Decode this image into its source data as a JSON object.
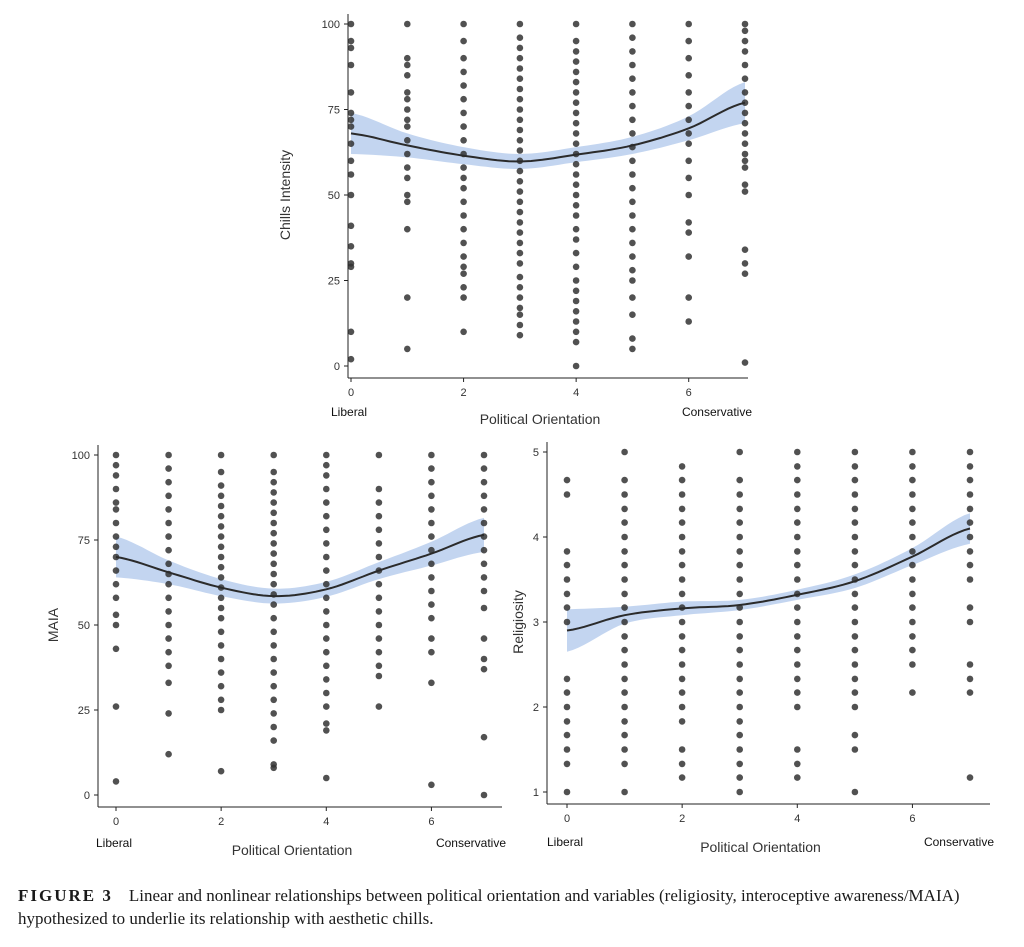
{
  "figure": {
    "label": "FIGURE 3",
    "caption": "Linear and nonlinear relationships between political orientation and variables (religiosity, interoceptive awareness/MAIA) hypothesized to underlie its relationship with aesthetic chills."
  },
  "colors": {
    "point": "#333333",
    "line": "#2b2b2b",
    "band": "#a9c3ea"
  },
  "chart_data": [
    {
      "id": "chills",
      "type": "scatter",
      "xlabel": "Political Orientation",
      "ylabel": "Chills Intensity",
      "xlim": [
        0,
        7
      ],
      "ylim": [
        0,
        100
      ],
      "xticks": [
        "0",
        "2",
        "4",
        "6"
      ],
      "yticks": [
        "0",
        "25",
        "50",
        "75",
        "100"
      ],
      "x_end_labels": [
        "Liberal",
        "Conservative"
      ],
      "fit_line": {
        "x": [
          0,
          1,
          2,
          3,
          4,
          5,
          6,
          7
        ],
        "y": [
          68,
          64.5,
          61.5,
          59.8,
          61.8,
          64.5,
          69.5,
          77
        ],
        "band": [
          6,
          3.5,
          2.5,
          2.2,
          2.2,
          2.5,
          3.5,
          6
        ]
      },
      "points": [
        {
          "x": 0,
          "y": [
            2,
            10,
            29,
            30,
            35,
            41,
            50,
            56,
            60,
            65,
            70,
            72,
            74,
            80,
            88,
            93,
            95,
            100
          ]
        },
        {
          "x": 1,
          "y": [
            5,
            20,
            40,
            48,
            50,
            55,
            58,
            62,
            66,
            70,
            72,
            75,
            78,
            80,
            85,
            88,
            90,
            100
          ]
        },
        {
          "x": 2,
          "y": [
            10,
            20,
            23,
            27,
            29,
            32,
            36,
            40,
            44,
            48,
            52,
            55,
            58,
            62,
            66,
            70,
            74,
            78,
            82,
            86,
            90,
            95,
            100
          ]
        },
        {
          "x": 3,
          "y": [
            9,
            12,
            15,
            17,
            20,
            23,
            26,
            30,
            33,
            36,
            39,
            42,
            45,
            48,
            51,
            54,
            57,
            60,
            63,
            66,
            69,
            72,
            75,
            78,
            81,
            84,
            87,
            90,
            93,
            96,
            100
          ]
        },
        {
          "x": 4,
          "y": [
            0,
            7,
            10,
            13,
            16,
            19,
            22,
            25,
            29,
            33,
            37,
            40,
            44,
            47,
            50,
            53,
            56,
            59,
            62,
            65,
            68,
            71,
            74,
            77,
            80,
            83,
            86,
            89,
            92,
            95,
            100
          ]
        },
        {
          "x": 5,
          "y": [
            5,
            8,
            15,
            20,
            25,
            28,
            32,
            36,
            40,
            44,
            48,
            52,
            56,
            60,
            64,
            68,
            72,
            76,
            80,
            84,
            88,
            92,
            96,
            100
          ]
        },
        {
          "x": 6,
          "y": [
            13,
            20,
            32,
            39,
            42,
            50,
            55,
            60,
            65,
            68,
            72,
            76,
            80,
            85,
            90,
            95,
            100
          ]
        },
        {
          "x": 7,
          "y": [
            1,
            27,
            30,
            34,
            51,
            53,
            58,
            60,
            62,
            65,
            68,
            71,
            74,
            77,
            80,
            84,
            88,
            92,
            95,
            98,
            100
          ]
        }
      ]
    },
    {
      "id": "maia",
      "type": "scatter",
      "xlabel": "Political Orientation",
      "ylabel": "MAIA",
      "xlim": [
        0,
        7
      ],
      "ylim": [
        0,
        100
      ],
      "xticks": [
        "0",
        "2",
        "4",
        "6"
      ],
      "yticks": [
        "0",
        "25",
        "50",
        "75",
        "100"
      ],
      "x_end_labels": [
        "Liberal",
        "Conservative"
      ],
      "fit_line": {
        "x": [
          0,
          1,
          2,
          3,
          4,
          5,
          6,
          7
        ],
        "y": [
          70,
          65.5,
          61,
          58.5,
          60.5,
          66,
          71,
          76.5
        ],
        "band": [
          6,
          3.5,
          2.5,
          2.2,
          2.2,
          2.5,
          3.5,
          5
        ]
      },
      "points": [
        {
          "x": 0,
          "y": [
            4,
            26,
            43,
            50,
            53,
            58,
            62,
            66,
            70,
            73,
            76,
            80,
            84,
            86,
            90,
            94,
            97,
            100
          ]
        },
        {
          "x": 1,
          "y": [
            12,
            24,
            33,
            38,
            42,
            46,
            50,
            54,
            58,
            62,
            65,
            68,
            72,
            76,
            80,
            84,
            88,
            92,
            96,
            100
          ]
        },
        {
          "x": 2,
          "y": [
            7,
            25,
            28,
            32,
            36,
            40,
            44,
            48,
            52,
            55,
            58,
            61,
            64,
            67,
            70,
            73,
            76,
            79,
            82,
            85,
            88,
            91,
            95,
            100
          ]
        },
        {
          "x": 3,
          "y": [
            8,
            9,
            16,
            20,
            24,
            28,
            32,
            36,
            40,
            44,
            48,
            52,
            56,
            59,
            62,
            65,
            68,
            71,
            74,
            77,
            80,
            83,
            86,
            89,
            92,
            95,
            100
          ]
        },
        {
          "x": 4,
          "y": [
            5,
            19,
            21,
            26,
            30,
            34,
            38,
            42,
            46,
            50,
            54,
            58,
            62,
            66,
            70,
            74,
            78,
            82,
            86,
            90,
            94,
            97,
            100
          ]
        },
        {
          "x": 5,
          "y": [
            26,
            35,
            38,
            42,
            46,
            50,
            54,
            58,
            62,
            66,
            70,
            74,
            78,
            82,
            86,
            90,
            100
          ]
        },
        {
          "x": 6,
          "y": [
            3,
            33,
            42,
            46,
            52,
            56,
            60,
            64,
            68,
            72,
            76,
            80,
            84,
            88,
            92,
            96,
            100
          ]
        },
        {
          "x": 7,
          "y": [
            0,
            17,
            37,
            40,
            46,
            55,
            60,
            64,
            68,
            72,
            76,
            80,
            84,
            88,
            92,
            96,
            100
          ]
        }
      ]
    },
    {
      "id": "religiosity",
      "type": "scatter",
      "xlabel": "Political Orientation",
      "ylabel": "Religiosity",
      "xlim": [
        0,
        7
      ],
      "ylim": [
        1,
        5
      ],
      "xticks": [
        "0",
        "2",
        "4",
        "6"
      ],
      "yticks": [
        "1",
        "2",
        "3",
        "4",
        "5"
      ],
      "x_end_labels": [
        "Liberal",
        "Conservative"
      ],
      "fit_line": {
        "x": [
          0,
          1,
          2,
          3,
          4,
          5,
          6,
          7
        ],
        "y": [
          2.9,
          3.08,
          3.16,
          3.2,
          3.32,
          3.48,
          3.77,
          4.1
        ],
        "band": [
          0.25,
          0.1,
          0.08,
          0.06,
          0.06,
          0.08,
          0.1,
          0.18
        ]
      },
      "points": [
        {
          "x": 0,
          "y": [
            1,
            1.33,
            1.5,
            1.67,
            1.83,
            2,
            2.17,
            2.33,
            3,
            3.17,
            3.33,
            3.5,
            3.67,
            3.83,
            4.5,
            4.67
          ]
        },
        {
          "x": 1,
          "y": [
            1,
            1.33,
            1.5,
            1.67,
            1.83,
            2,
            2.17,
            2.33,
            2.5,
            2.67,
            2.83,
            3,
            3.17,
            3.33,
            3.5,
            3.67,
            3.83,
            4,
            4.17,
            4.33,
            4.5,
            4.67,
            5
          ]
        },
        {
          "x": 2,
          "y": [
            1.17,
            1.33,
            1.5,
            1.83,
            2,
            2.17,
            2.33,
            2.5,
            2.67,
            2.83,
            3,
            3.17,
            3.33,
            3.5,
            3.67,
            3.83,
            4,
            4.17,
            4.33,
            4.5,
            4.67,
            4.83
          ]
        },
        {
          "x": 3,
          "y": [
            1,
            1.17,
            1.33,
            1.5,
            1.67,
            1.83,
            2,
            2.17,
            2.33,
            2.5,
            2.67,
            2.83,
            3,
            3.17,
            3.33,
            3.5,
            3.67,
            3.83,
            4,
            4.17,
            4.33,
            4.5,
            4.67,
            5
          ]
        },
        {
          "x": 4,
          "y": [
            1.17,
            1.33,
            1.5,
            2,
            2.17,
            2.33,
            2.5,
            2.67,
            2.83,
            3,
            3.17,
            3.33,
            3.5,
            3.67,
            3.83,
            4,
            4.17,
            4.33,
            4.5,
            4.67,
            4.83,
            5
          ]
        },
        {
          "x": 5,
          "y": [
            1,
            1.5,
            1.67,
            2,
            2.17,
            2.33,
            2.5,
            2.67,
            2.83,
            3,
            3.17,
            3.33,
            3.5,
            3.67,
            3.83,
            4,
            4.17,
            4.33,
            4.5,
            4.67,
            4.83,
            5
          ]
        },
        {
          "x": 6,
          "y": [
            2.17,
            2.5,
            2.67,
            2.83,
            3,
            3.17,
            3.33,
            3.5,
            3.67,
            3.83,
            4,
            4.17,
            4.33,
            4.5,
            4.67,
            4.83,
            5
          ]
        },
        {
          "x": 7,
          "y": [
            1.17,
            2.17,
            2.33,
            2.5,
            3,
            3.17,
            3.5,
            3.67,
            3.83,
            4,
            4.17,
            4.33,
            4.5,
            4.67,
            4.83,
            5
          ]
        }
      ]
    }
  ]
}
